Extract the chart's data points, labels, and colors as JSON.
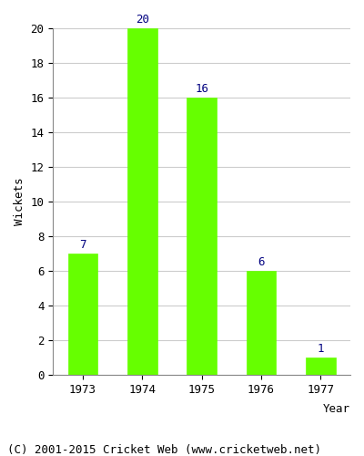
{
  "categories": [
    "1973",
    "1974",
    "1975",
    "1976",
    "1977"
  ],
  "values": [
    7,
    20,
    16,
    6,
    1
  ],
  "bar_color": "#66ff00",
  "bar_edgecolor": "#66ff00",
  "label_color": "#000080",
  "ylabel": "Wickets",
  "xlabel": "Year",
  "ylim": [
    0,
    20
  ],
  "yticks": [
    0,
    2,
    4,
    6,
    8,
    10,
    12,
    14,
    16,
    18,
    20
  ],
  "title": "",
  "caption": "(C) 2001-2015 Cricket Web (www.cricketweb.net)",
  "label_fontsize": 9,
  "axis_fontsize": 9,
  "caption_fontsize": 9,
  "bg_color": "#ffffff",
  "plot_bg_color": "#ffffff",
  "grid_color": "#cccccc"
}
